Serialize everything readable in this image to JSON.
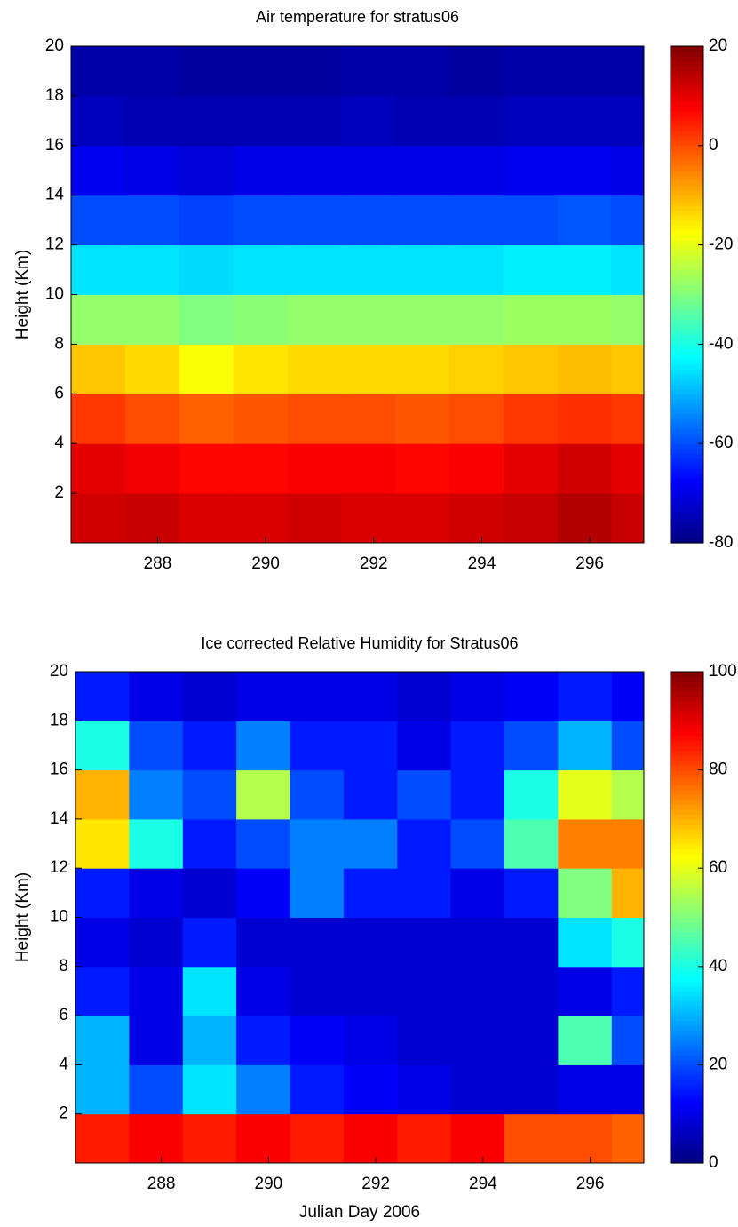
{
  "chart_data": [
    {
      "type": "heatmap",
      "title": "Air temperature for stratus06",
      "ylabel": "Height (Km)",
      "colormap": "jet",
      "xbins": [
        286.4,
        287.4,
        288.4,
        289.4,
        290.4,
        291.4,
        292.4,
        293.4,
        294.4,
        295.4,
        296.4,
        297.0
      ],
      "ybins": [
        0,
        2,
        4,
        6,
        8,
        10,
        12,
        14,
        16,
        18,
        20
      ],
      "values": [
        [
          12,
          13,
          11,
          11,
          12,
          11,
          11,
          12,
          13,
          15,
          13
        ],
        [
          10,
          9,
          7,
          7,
          8,
          8,
          7,
          8,
          10,
          12,
          10
        ],
        [
          2,
          0,
          -2,
          -1,
          0,
          0,
          -1,
          0,
          2,
          3,
          2
        ],
        [
          -12,
          -14,
          -18,
          -15,
          -14,
          -14,
          -14,
          -13,
          -12,
          -11,
          -12
        ],
        [
          -28,
          -28,
          -30,
          -29,
          -28,
          -28,
          -28,
          -28,
          -27,
          -27,
          -28
        ],
        [
          -45,
          -45,
          -46,
          -45,
          -45,
          -45,
          -45,
          -45,
          -44,
          -44,
          -45
        ],
        [
          -60,
          -60,
          -61,
          -60,
          -60,
          -60,
          -60,
          -60,
          -60,
          -59,
          -60
        ],
        [
          -69,
          -70,
          -71,
          -70,
          -70,
          -70,
          -70,
          -70,
          -69,
          -69,
          -70
        ],
        [
          -74,
          -75,
          -75,
          -75,
          -75,
          -74,
          -75,
          -75,
          -74,
          -74,
          -74
        ],
        [
          -76,
          -76,
          -77,
          -77,
          -77,
          -76,
          -76,
          -77,
          -76,
          -76,
          -76
        ]
      ],
      "xlim": [
        286.4,
        297.0
      ],
      "ylim": [
        0,
        20
      ],
      "xticks": [
        288,
        290,
        292,
        294,
        296
      ],
      "yticks": [
        2,
        4,
        6,
        8,
        10,
        12,
        14,
        16,
        18,
        20
      ],
      "clim": [
        -80,
        20
      ],
      "cticks": [
        -80,
        -60,
        -40,
        -20,
        0,
        20
      ]
    },
    {
      "type": "heatmap",
      "title": "Ice corrected Relative Humidity for Stratus06",
      "ylabel": "Height (Km)",
      "xlabel": "Julian Day 2006",
      "colormap": "jet",
      "xbins": [
        286.4,
        287.4,
        288.4,
        289.4,
        290.4,
        291.4,
        292.4,
        293.4,
        294.4,
        295.4,
        296.4,
        297.0
      ],
      "ybins": [
        0,
        2,
        4,
        6,
        8,
        10,
        12,
        14,
        16,
        18,
        20
      ],
      "values": [
        [
          85,
          88,
          85,
          88,
          85,
          88,
          85,
          88,
          80,
          80,
          78
        ],
        [
          30,
          20,
          35,
          25,
          15,
          12,
          10,
          8,
          8,
          10,
          10
        ],
        [
          30,
          10,
          30,
          15,
          12,
          10,
          8,
          8,
          8,
          45,
          20
        ],
        [
          15,
          10,
          35,
          10,
          8,
          8,
          8,
          8,
          8,
          10,
          15
        ],
        [
          10,
          8,
          15,
          8,
          8,
          8,
          8,
          8,
          8,
          35,
          40
        ],
        [
          15,
          10,
          8,
          12,
          25,
          15,
          15,
          10,
          15,
          50,
          70
        ],
        [
          65,
          40,
          15,
          20,
          25,
          25,
          15,
          20,
          45,
          75,
          75
        ],
        [
          70,
          25,
          20,
          55,
          20,
          15,
          20,
          15,
          40,
          60,
          55
        ],
        [
          40,
          20,
          15,
          25,
          15,
          15,
          10,
          15,
          20,
          30,
          20
        ],
        [
          15,
          10,
          8,
          10,
          10,
          10,
          8,
          10,
          12,
          15,
          12
        ]
      ],
      "xlim": [
        286.4,
        297.0
      ],
      "ylim": [
        0,
        20
      ],
      "xticks": [
        288,
        290,
        292,
        294,
        296
      ],
      "yticks": [
        2,
        4,
        6,
        8,
        10,
        12,
        14,
        16,
        18,
        20
      ],
      "clim": [
        0,
        100
      ],
      "cticks": [
        0,
        20,
        40,
        60,
        80,
        100
      ]
    }
  ]
}
